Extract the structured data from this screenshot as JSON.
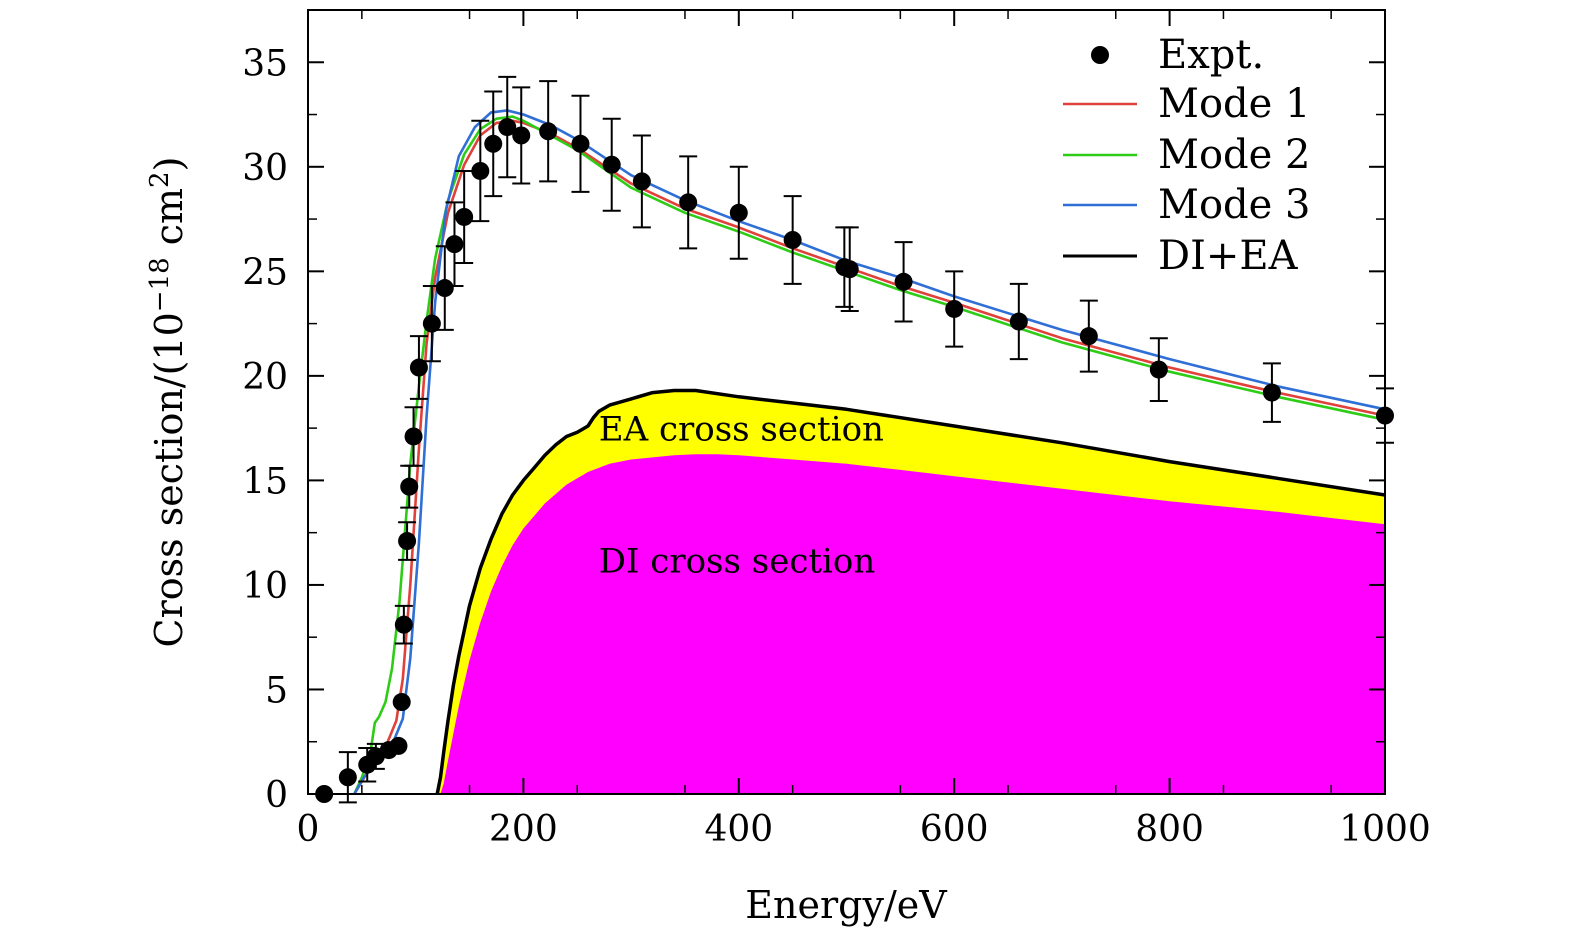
{
  "chart_data": {
    "type": "line",
    "title": "",
    "xlabel": "Energy/eV",
    "ylabel_main": "Cross section/(10",
    "ylabel_exp": "−18",
    "ylabel_tail": " cm",
    "ylabel_sq": "2",
    "ylabel_close": ")",
    "xlim": [
      0,
      1000
    ],
    "ylim": [
      0,
      37.5
    ],
    "xticks": [
      0,
      200,
      400,
      600,
      800,
      1000
    ],
    "xtick_labels": [
      "0",
      "200",
      "400",
      "600",
      "800",
      "1000"
    ],
    "yticks": [
      0,
      5,
      10,
      15,
      20,
      25,
      30,
      35
    ],
    "ytick_labels": [
      "0",
      "5",
      "10",
      "15",
      "20",
      "25",
      "30",
      "35"
    ],
    "legend_position": "top-right",
    "annotations": [
      {
        "text": "EA cross section",
        "x": 270,
        "y": 16.9
      },
      {
        "text": "DI cross section",
        "x": 270,
        "y": 10.6
      }
    ],
    "experiment": {
      "name": "Expt.",
      "color": "#000000",
      "points": [
        {
          "x": 15,
          "y": 0.0,
          "err": 0
        },
        {
          "x": 37,
          "y": 0.8,
          "err": 1.2
        },
        {
          "x": 55,
          "y": 1.4,
          "err": 0.8
        },
        {
          "x": 63,
          "y": 1.8,
          "err": 0.6
        },
        {
          "x": 75,
          "y": 2.1,
          "err": 0
        },
        {
          "x": 84,
          "y": 2.3,
          "err": 0
        },
        {
          "x": 87,
          "y": 4.4,
          "err": 0
        },
        {
          "x": 89,
          "y": 8.1,
          "err": 0.9
        },
        {
          "x": 92,
          "y": 12.1,
          "err": 0.9
        },
        {
          "x": 94,
          "y": 14.7,
          "err": 1.0
        },
        {
          "x": 98,
          "y": 17.1,
          "err": 1.4
        },
        {
          "x": 103,
          "y": 20.4,
          "err": 1.5
        },
        {
          "x": 115,
          "y": 22.5,
          "err": 1.8
        },
        {
          "x": 127,
          "y": 24.2,
          "err": 2.0
        },
        {
          "x": 136,
          "y": 26.3,
          "err": 2.0
        },
        {
          "x": 145,
          "y": 27.6,
          "err": 2.2
        },
        {
          "x": 160,
          "y": 29.8,
          "err": 2.4
        },
        {
          "x": 172,
          "y": 31.1,
          "err": 2.5
        },
        {
          "x": 185,
          "y": 31.9,
          "err": 2.4
        },
        {
          "x": 198,
          "y": 31.5,
          "err": 2.3
        },
        {
          "x": 223,
          "y": 31.7,
          "err": 2.4
        },
        {
          "x": 253,
          "y": 31.1,
          "err": 2.3
        },
        {
          "x": 282,
          "y": 30.1,
          "err": 2.2
        },
        {
          "x": 310,
          "y": 29.3,
          "err": 2.2
        },
        {
          "x": 353,
          "y": 28.3,
          "err": 2.2
        },
        {
          "x": 400,
          "y": 27.8,
          "err": 2.2
        },
        {
          "x": 450,
          "y": 26.5,
          "err": 2.1
        },
        {
          "x": 498,
          "y": 25.2,
          "err": 1.9
        },
        {
          "x": 503,
          "y": 25.1,
          "err": 2.0
        },
        {
          "x": 553,
          "y": 24.5,
          "err": 1.9
        },
        {
          "x": 600,
          "y": 23.2,
          "err": 1.8
        },
        {
          "x": 660,
          "y": 22.6,
          "err": 1.8
        },
        {
          "x": 725,
          "y": 21.9,
          "err": 1.7
        },
        {
          "x": 790,
          "y": 20.3,
          "err": 1.5
        },
        {
          "x": 895,
          "y": 19.2,
          "err": 1.4
        },
        {
          "x": 1000,
          "y": 18.1,
          "err": 1.3
        }
      ]
    },
    "series": [
      {
        "name": "Mode 1",
        "color": "#e0413a",
        "x": [
          43,
          50,
          58,
          66,
          74,
          82,
          88,
          95,
          103,
          110,
          118,
          130,
          145,
          160,
          175,
          190,
          200,
          225,
          250,
          300,
          350,
          400,
          450,
          500,
          550,
          600,
          700,
          800,
          900,
          1000
        ],
        "y": [
          0,
          0.6,
          1.3,
          1.9,
          2.5,
          3.5,
          5.5,
          10.0,
          16.5,
          21.5,
          24.7,
          27.8,
          30.1,
          31.5,
          32.1,
          32.2,
          32.1,
          31.6,
          30.9,
          29.2,
          28.0,
          27.1,
          26.1,
          25.2,
          24.3,
          23.5,
          21.8,
          20.4,
          19.2,
          18.1
        ]
      },
      {
        "name": "Mode 2",
        "color": "#2ecc17",
        "x": [
          43,
          50,
          58,
          62,
          66,
          72,
          78,
          85,
          90,
          95,
          103,
          110,
          118,
          130,
          145,
          160,
          175,
          190,
          200,
          225,
          250,
          300,
          350,
          400,
          450,
          500,
          550,
          600,
          700,
          800,
          900,
          1000
        ],
        "y": [
          0,
          0.8,
          2.0,
          3.4,
          3.7,
          4.4,
          6.0,
          9.2,
          12.5,
          15.8,
          19.5,
          22.6,
          25.6,
          28.4,
          30.6,
          31.8,
          32.3,
          32.4,
          32.2,
          31.5,
          30.8,
          29.0,
          27.8,
          26.9,
          25.9,
          25.0,
          24.1,
          23.3,
          21.6,
          20.2,
          19.0,
          17.9
        ]
      },
      {
        "name": "Mode 3",
        "color": "#2f6fd6",
        "x": [
          43,
          52,
          60,
          70,
          80,
          88,
          95,
          103,
          110,
          118,
          128,
          140,
          155,
          170,
          185,
          200,
          225,
          250,
          300,
          350,
          400,
          450,
          500,
          550,
          600,
          700,
          800,
          900,
          1000
        ],
        "y": [
          0,
          0.8,
          1.3,
          1.9,
          2.6,
          3.6,
          6.5,
          12.0,
          18.0,
          23.5,
          27.9,
          30.5,
          31.9,
          32.6,
          32.7,
          32.5,
          32.0,
          31.3,
          29.6,
          28.4,
          27.4,
          26.5,
          25.5,
          24.7,
          23.8,
          22.2,
          20.8,
          19.5,
          18.4
        ]
      },
      {
        "name": "DI+EA",
        "color": "#000000",
        "x": [
          120,
          123,
          126,
          130,
          135,
          140,
          150,
          160,
          170,
          180,
          190,
          200,
          210,
          220,
          230,
          240,
          250,
          260,
          265,
          270,
          280,
          300,
          320,
          340,
          360,
          400,
          450,
          500,
          600,
          700,
          800,
          900,
          1000
        ],
        "y": [
          0,
          0.8,
          2.0,
          3.5,
          5.2,
          6.6,
          9.0,
          10.8,
          12.2,
          13.4,
          14.3,
          15.0,
          15.6,
          16.2,
          16.7,
          17.1,
          17.3,
          17.6,
          18.0,
          18.3,
          18.6,
          18.9,
          19.2,
          19.3,
          19.3,
          19.0,
          18.7,
          18.4,
          17.6,
          16.8,
          15.9,
          15.1,
          14.3
        ]
      }
    ],
    "fill_regions": [
      {
        "name": "EA cross section",
        "color": "#ffff00",
        "upper": "DI+EA"
      },
      {
        "name": "DI cross section",
        "color": "#ff00ff",
        "x": [
          123,
          126,
          130,
          135,
          140,
          150,
          160,
          170,
          180,
          190,
          200,
          220,
          240,
          260,
          280,
          300,
          320,
          340,
          360,
          380,
          400,
          450,
          500,
          550,
          600,
          700,
          800,
          900,
          1000
        ],
        "y": [
          0,
          0.5,
          1.6,
          2.9,
          4.2,
          6.4,
          8.2,
          9.7,
          10.9,
          11.9,
          12.7,
          13.9,
          14.8,
          15.4,
          15.8,
          16.0,
          16.1,
          16.2,
          16.25,
          16.25,
          16.2,
          16.0,
          15.8,
          15.5,
          15.2,
          14.6,
          14.0,
          13.5,
          12.9
        ]
      }
    ]
  }
}
